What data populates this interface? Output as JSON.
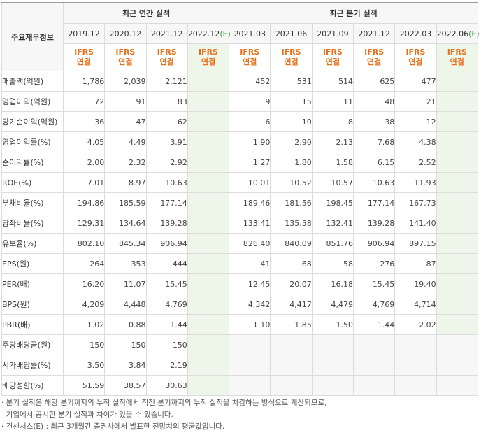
{
  "header": {
    "row_label": "주요재무정보",
    "annual_title": "최근 연간 실적",
    "quarter_title": "최근 분기 실적",
    "annual_periods": [
      "2019.12",
      "2020.12",
      "2021.12",
      "2022.12(E)"
    ],
    "quarter_periods": [
      "2021.03",
      "2021.06",
      "2021.09",
      "2021.12",
      "2022.03",
      "2022.06(E)"
    ],
    "basis_top": "IFRS",
    "basis_bottom": "연결"
  },
  "rows": [
    {
      "label": "매출액(억원)",
      "annual": [
        "1,786",
        "2,039",
        "2,121",
        ""
      ],
      "quarter": [
        "452",
        "531",
        "514",
        "625",
        "477",
        ""
      ]
    },
    {
      "label": "영업이익(억원)",
      "annual": [
        "72",
        "91",
        "83",
        ""
      ],
      "quarter": [
        "9",
        "15",
        "11",
        "48",
        "21",
        ""
      ]
    },
    {
      "label": "당기순이익(억원)",
      "annual": [
        "36",
        "47",
        "62",
        ""
      ],
      "quarter": [
        "6",
        "10",
        "8",
        "38",
        "12",
        ""
      ]
    },
    {
      "label": "영업이익률(%)",
      "annual": [
        "4.05",
        "4.49",
        "3.91",
        ""
      ],
      "quarter": [
        "1.90",
        "2.90",
        "2.13",
        "7.68",
        "4.38",
        ""
      ]
    },
    {
      "label": "순이익률(%)",
      "annual": [
        "2.00",
        "2.32",
        "2.92",
        ""
      ],
      "quarter": [
        "1.27",
        "1.80",
        "1.58",
        "6.15",
        "2.52",
        ""
      ]
    },
    {
      "label": "ROE(%)",
      "annual": [
        "7.01",
        "8.97",
        "10.63",
        ""
      ],
      "quarter": [
        "10.01",
        "10.52",
        "10.57",
        "10.63",
        "11.93",
        ""
      ]
    },
    {
      "label": "부채비율(%)",
      "annual": [
        "194.86",
        "185.59",
        "177.14",
        ""
      ],
      "quarter": [
        "189.46",
        "181.56",
        "198.45",
        "177.14",
        "167.73",
        ""
      ]
    },
    {
      "label": "당좌비율(%)",
      "annual": [
        "129.31",
        "134.64",
        "139.28",
        ""
      ],
      "quarter": [
        "133.41",
        "135.58",
        "132.41",
        "139.28",
        "141.40",
        ""
      ]
    },
    {
      "label": "유보율(%)",
      "annual": [
        "802.10",
        "845.34",
        "906.94",
        ""
      ],
      "quarter": [
        "826.40",
        "840.09",
        "851.76",
        "906.94",
        "897.15",
        ""
      ]
    },
    {
      "label": "EPS(원)",
      "annual": [
        "264",
        "353",
        "444",
        ""
      ],
      "quarter": [
        "41",
        "68",
        "58",
        "276",
        "87",
        ""
      ]
    },
    {
      "label": "PER(배)",
      "annual": [
        "16.20",
        "11.07",
        "15.45",
        ""
      ],
      "quarter": [
        "12.45",
        "20.07",
        "16.18",
        "15.45",
        "19.40",
        ""
      ]
    },
    {
      "label": "BPS(원)",
      "annual": [
        "4,209",
        "4,448",
        "4,769",
        ""
      ],
      "quarter": [
        "4,342",
        "4,417",
        "4,479",
        "4,769",
        "4,714",
        ""
      ]
    },
    {
      "label": "PBR(배)",
      "annual": [
        "1.02",
        "0.88",
        "1.44",
        ""
      ],
      "quarter": [
        "1.10",
        "1.85",
        "1.50",
        "1.44",
        "2.02",
        ""
      ]
    },
    {
      "label": "주당배당금(원)",
      "annual": [
        "150",
        "150",
        "150",
        ""
      ],
      "quarter": [
        "",
        "",
        "",
        "",
        "",
        ""
      ]
    },
    {
      "label": "시가배당률(%)",
      "annual": [
        "3.50",
        "3.84",
        "2.19",
        ""
      ],
      "quarter": [
        "",
        "",
        "",
        "",
        "",
        ""
      ]
    },
    {
      "label": "배당성향(%)",
      "annual": [
        "51.59",
        "38.57",
        "30.63",
        ""
      ],
      "quarter": [
        "",
        "",
        "",
        "",
        "",
        ""
      ]
    }
  ],
  "notes": [
    "· 분기 실적은 해당 분기까지의 누적 실적에서 직전 분기까지의 누적 실적을 차감하는 방식으로 계산되므로,",
    "  기업에서 공시한 분기 실적과 차이가 있을 수 있습니다.",
    "· 컨센서스(E) : 최근 3개월간 증권사에서 발표한 전망치의 평균값입니다."
  ],
  "colors": {
    "accent": "#e8701a",
    "estimate_bg": "#eef6ea",
    "estimate_mark": "#3a9a3a"
  }
}
